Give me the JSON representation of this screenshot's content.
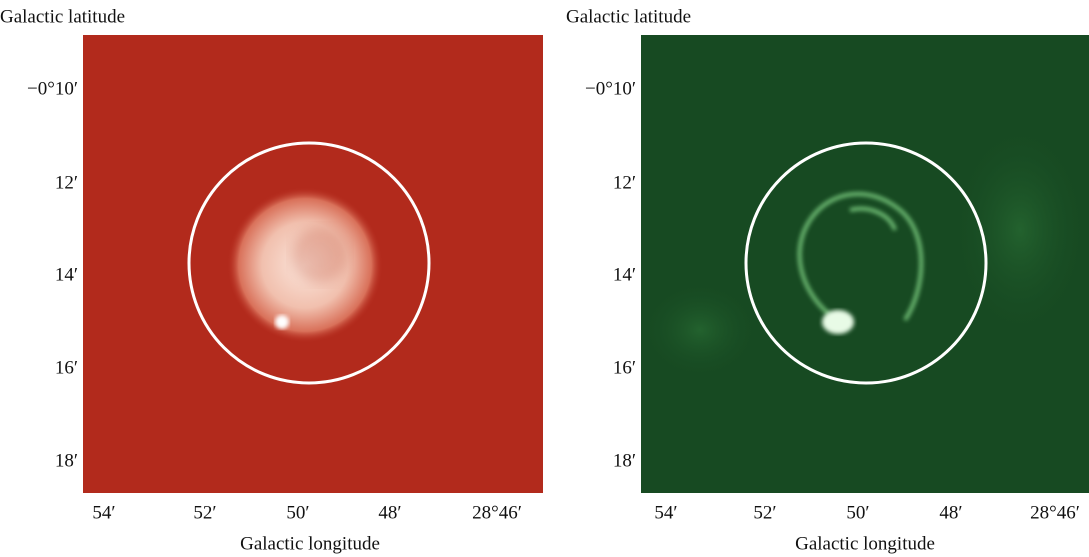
{
  "panels": [
    {
      "ylabel": "Galactic latitude",
      "xlabel": "Galactic longitude",
      "yticks": [
        "−0°10′",
        "12′",
        "14′",
        "16′",
        "18′"
      ],
      "xticks": [
        "54′",
        "52′",
        "50′",
        "48′",
        "28°46′"
      ]
    },
    {
      "ylabel": "Galactic latitude",
      "xlabel": "Galactic longitude",
      "yticks": [
        "−0°10′",
        "12′",
        "14′",
        "16′",
        "18′"
      ],
      "xticks": [
        "54′",
        "52′",
        "50′",
        "48′",
        "28°46′"
      ]
    }
  ]
}
